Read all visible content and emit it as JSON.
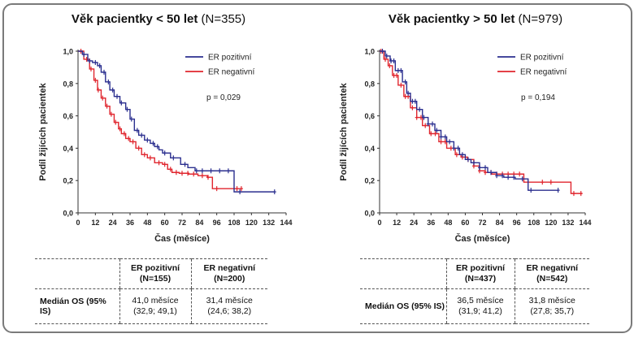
{
  "chart_data": [
    {
      "type": "line",
      "subtype": "kaplan-meier",
      "title": "Věk pacientky < 50 let",
      "title_n": "(N=355)",
      "xlabel": "Čas (měsíce)",
      "ylabel": "Podíl žijících pacientek",
      "xlim": [
        0,
        144
      ],
      "ylim": [
        0,
        1.0
      ],
      "x_ticks": [
        "0",
        "12",
        "24",
        "36",
        "48",
        "60",
        "72",
        "84",
        "96",
        "108",
        "120",
        "132",
        "144"
      ],
      "y_ticks": [
        "0,0",
        "0,2",
        "0,4",
        "0,6",
        "0,8",
        "1,0"
      ],
      "legend_position": "top-right",
      "annotation": "p = 0,029",
      "series": [
        {
          "name": "ER pozitivní",
          "color": "#2b2f8f",
          "points": [
            [
              0,
              1.0
            ],
            [
              3,
              0.98
            ],
            [
              6.75,
              0.94
            ],
            [
              10,
              0.93
            ],
            [
              13.5,
              0.91
            ],
            [
              16,
              0.87
            ],
            [
              19,
              0.81
            ],
            [
              22,
              0.76
            ],
            [
              25,
              0.72
            ],
            [
              29,
              0.68
            ],
            [
              33,
              0.64
            ],
            [
              36,
              0.58
            ],
            [
              39,
              0.51
            ],
            [
              42,
              0.48
            ],
            [
              46,
              0.45
            ],
            [
              50,
              0.43
            ],
            [
              53,
              0.41
            ],
            [
              56,
              0.39
            ],
            [
              58.5,
              0.37
            ],
            [
              64,
              0.34
            ],
            [
              71,
              0.3
            ],
            [
              76,
              0.28
            ],
            [
              81,
              0.26
            ],
            [
              108,
              0.26
            ],
            [
              108,
              0.13
            ],
            [
              136,
              0.13
            ]
          ],
          "censor": [
            4,
            8,
            12,
            15,
            18,
            21,
            24,
            27,
            30,
            34,
            37,
            41,
            44,
            48,
            52,
            55,
            60,
            66,
            74,
            82,
            86,
            92,
            98,
            104,
            112,
            136
          ]
        },
        {
          "name": "ER negativní",
          "color": "#e0262e",
          "points": [
            [
              0,
              1.0
            ],
            [
              4,
              0.95
            ],
            [
              8,
              0.89
            ],
            [
              11,
              0.82
            ],
            [
              13.5,
              0.76
            ],
            [
              16,
              0.71
            ],
            [
              19,
              0.66
            ],
            [
              22,
              0.61
            ],
            [
              25,
              0.56
            ],
            [
              28,
              0.52
            ],
            [
              30,
              0.49
            ],
            [
              33,
              0.46
            ],
            [
              36,
              0.44
            ],
            [
              40,
              0.4
            ],
            [
              44,
              0.36
            ],
            [
              48,
              0.34
            ],
            [
              53,
              0.31
            ],
            [
              58.5,
              0.3
            ],
            [
              62,
              0.27
            ],
            [
              65,
              0.25
            ],
            [
              70,
              0.245
            ],
            [
              76.5,
              0.24
            ],
            [
              83,
              0.23
            ],
            [
              89.5,
              0.22
            ],
            [
              93,
              0.15
            ],
            [
              113,
              0.15
            ]
          ],
          "censor": [
            2,
            6,
            9,
            12,
            14,
            17,
            20,
            23,
            26,
            29,
            32,
            35,
            38,
            42,
            46,
            50,
            56,
            60,
            64,
            68,
            72,
            76,
            80,
            86,
            90,
            96,
            110,
            113
          ]
        }
      ]
    },
    {
      "type": "line",
      "subtype": "kaplan-meier",
      "title": "Věk pacientky > 50 let",
      "title_n": "(N=979)",
      "xlabel": "Čas (měsíce)",
      "ylabel": "Podíl žijících pacientek",
      "xlim": [
        0,
        144
      ],
      "ylim": [
        0,
        1.0
      ],
      "x_ticks": [
        "0",
        "12",
        "24",
        "36",
        "48",
        "60",
        "72",
        "84",
        "96",
        "108",
        "120",
        "132",
        "144"
      ],
      "y_ticks": [
        "0,0",
        "0,2",
        "0,4",
        "0,6",
        "0,8",
        "1,0"
      ],
      "legend_position": "top-right",
      "annotation": "p = 0,194",
      "series": [
        {
          "name": "ER pozitivní",
          "color": "#2b2f8f",
          "points": [
            [
              0,
              1.0
            ],
            [
              4,
              0.97
            ],
            [
              7.4,
              0.94
            ],
            [
              11,
              0.88
            ],
            [
              16,
              0.81
            ],
            [
              19,
              0.74
            ],
            [
              21.6,
              0.69
            ],
            [
              26,
              0.64
            ],
            [
              30,
              0.59
            ],
            [
              34,
              0.55
            ],
            [
              38.7,
              0.51
            ],
            [
              43,
              0.47
            ],
            [
              47,
              0.44
            ],
            [
              52,
              0.4
            ],
            [
              56,
              0.36
            ],
            [
              60,
              0.33
            ],
            [
              64,
              0.31
            ],
            [
              70,
              0.28
            ],
            [
              75.7,
              0.25
            ],
            [
              82,
              0.23
            ],
            [
              87,
              0.22
            ],
            [
              95,
              0.21
            ],
            [
              104,
              0.2
            ],
            [
              104,
              0.14
            ],
            [
              125,
              0.14
            ]
          ],
          "censor": [
            2,
            5,
            8,
            10,
            13,
            15,
            18,
            20,
            23,
            25,
            28,
            31,
            34,
            37,
            40,
            43,
            46,
            49,
            52,
            55,
            58,
            62,
            66,
            70,
            74,
            78,
            82,
            86,
            90,
            94,
            100,
            106,
            125
          ]
        },
        {
          "name": "ER negativní",
          "color": "#e0262e",
          "points": [
            [
              0,
              1.0
            ],
            [
              3,
              0.95
            ],
            [
              6,
              0.91
            ],
            [
              9,
              0.85
            ],
            [
              13,
              0.79
            ],
            [
              17,
              0.72
            ],
            [
              21.6,
              0.65
            ],
            [
              26,
              0.59
            ],
            [
              30,
              0.54
            ],
            [
              35,
              0.49
            ],
            [
              41.5,
              0.44
            ],
            [
              47,
              0.4
            ],
            [
              53,
              0.36
            ],
            [
              57,
              0.345
            ],
            [
              61.5,
              0.33
            ],
            [
              66,
              0.29
            ],
            [
              70,
              0.26
            ],
            [
              74,
              0.25
            ],
            [
              78.5,
              0.24
            ],
            [
              98.5,
              0.24
            ],
            [
              101,
              0.19
            ],
            [
              134,
              0.19
            ],
            [
              134,
              0.12
            ],
            [
              142,
              0.12
            ]
          ],
          "censor": [
            1,
            4,
            7,
            10,
            12,
            15,
            18,
            20,
            23,
            26,
            29,
            32,
            36,
            39,
            43,
            46,
            50,
            54,
            58,
            62,
            66,
            70,
            74,
            78,
            82,
            86,
            90,
            94,
            98,
            114,
            120,
            136,
            141
          ]
        }
      ]
    }
  ],
  "tables": [
    {
      "headers": [
        {
          "line1": "ER pozitivní",
          "line2": "(N=155)"
        },
        {
          "line1": "ER negativní",
          "line2": "(N=200)"
        }
      ],
      "row_label": "Medián OS (95% IS)",
      "cells": [
        {
          "line1": "41,0 měsíce",
          "line2": "(32,9; 49,1)"
        },
        {
          "line1": "31,4 měsíce",
          "line2": "(24,6; 38,2)"
        }
      ]
    },
    {
      "headers": [
        {
          "line1": "ER pozitivní",
          "line2": "(N=437)"
        },
        {
          "line1": "ER negativní",
          "line2": "(N=542)"
        }
      ],
      "row_label": "Medián OS (95% IS)",
      "cells": [
        {
          "line1": "36,5 měsíce",
          "line2": "(31,9; 41,2)"
        },
        {
          "line1": "31,8 měsíce",
          "line2": "(27,8; 35,7)"
        }
      ]
    }
  ]
}
